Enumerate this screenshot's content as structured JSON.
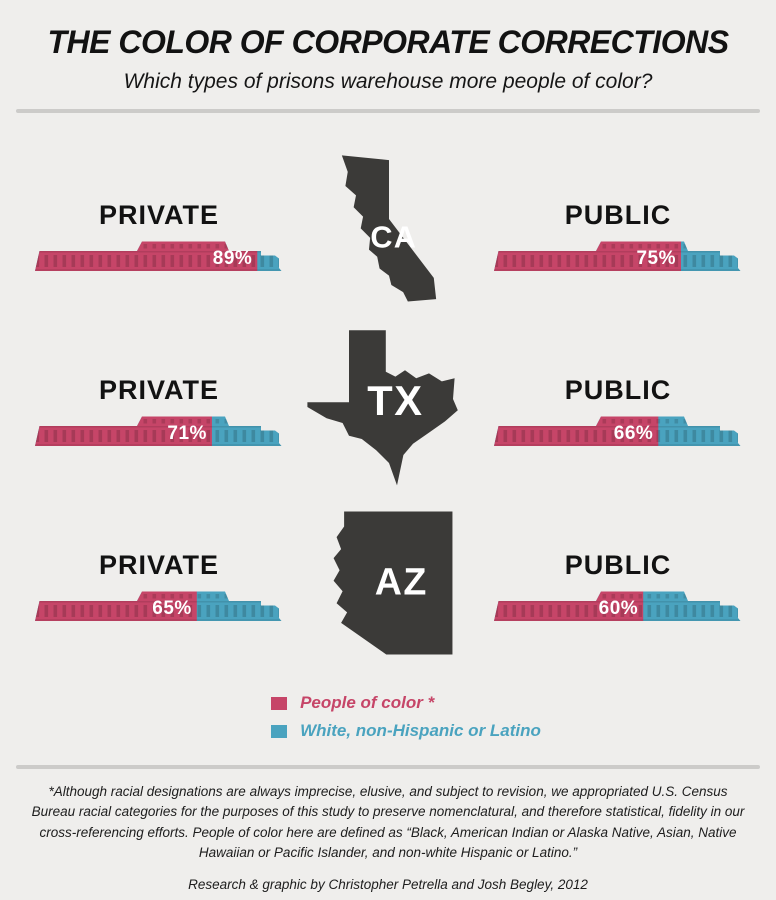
{
  "header": {
    "title": "THE COLOR OF CORPORATE CORRECTIONS",
    "subtitle": "Which types of prisons warehouse more people of color?"
  },
  "labels": {
    "private": "PRIVATE",
    "public": "PUBLIC"
  },
  "chart_data": {
    "type": "bar",
    "title": "THE COLOR OF CORPORATE CORRECTIONS",
    "subtitle": "Which types of prisons warehouse more people of color?",
    "unit": "percent of prison population who are people of color",
    "categories": [
      "CA",
      "TX",
      "AZ"
    ],
    "series": [
      {
        "name": "PRIVATE",
        "values": [
          89,
          71,
          65
        ]
      },
      {
        "name": "PUBLIC",
        "values": [
          75,
          66,
          60
        ]
      }
    ],
    "rows": [
      {
        "state": "CA",
        "private_pct": 89,
        "public_pct": 75
      },
      {
        "state": "TX",
        "private_pct": 71,
        "public_pct": 66
      },
      {
        "state": "AZ",
        "private_pct": 65,
        "public_pct": 60
      }
    ],
    "value_suffix": "%",
    "xlim": [
      0,
      100
    ],
    "legend_position": "bottom-center",
    "grid": false
  },
  "legend": {
    "items": [
      {
        "label": "People of color *",
        "color": "#c64568"
      },
      {
        "label": "White, non-Hispanic or Latino",
        "color": "#4aa3bf"
      }
    ]
  },
  "colors": {
    "people_of_color": "#c64568",
    "white_non_hispanic": "#4aa3bf",
    "state_fill": "#3b3a38",
    "background": "#efeeec",
    "divider": "#cccbc9",
    "percent_text": "#ffffff"
  },
  "footer": {
    "footnote": "*Although racial designations are always imprecise, elusive, and subject to revision, we appropriated U.S. Census Bureau racial categories for the purposes of this study to preserve nomenclatural, and therefore statistical, fidelity in our cross-referencing efforts. People of color here are defined as “Black, American Indian or Alaska Native, Asian, Native Hawaiian or Pacific Islander, and non-white Hispanic or Latino.”",
    "credit": "Research & graphic by Christopher Petrella and Josh Begley, 2012"
  }
}
